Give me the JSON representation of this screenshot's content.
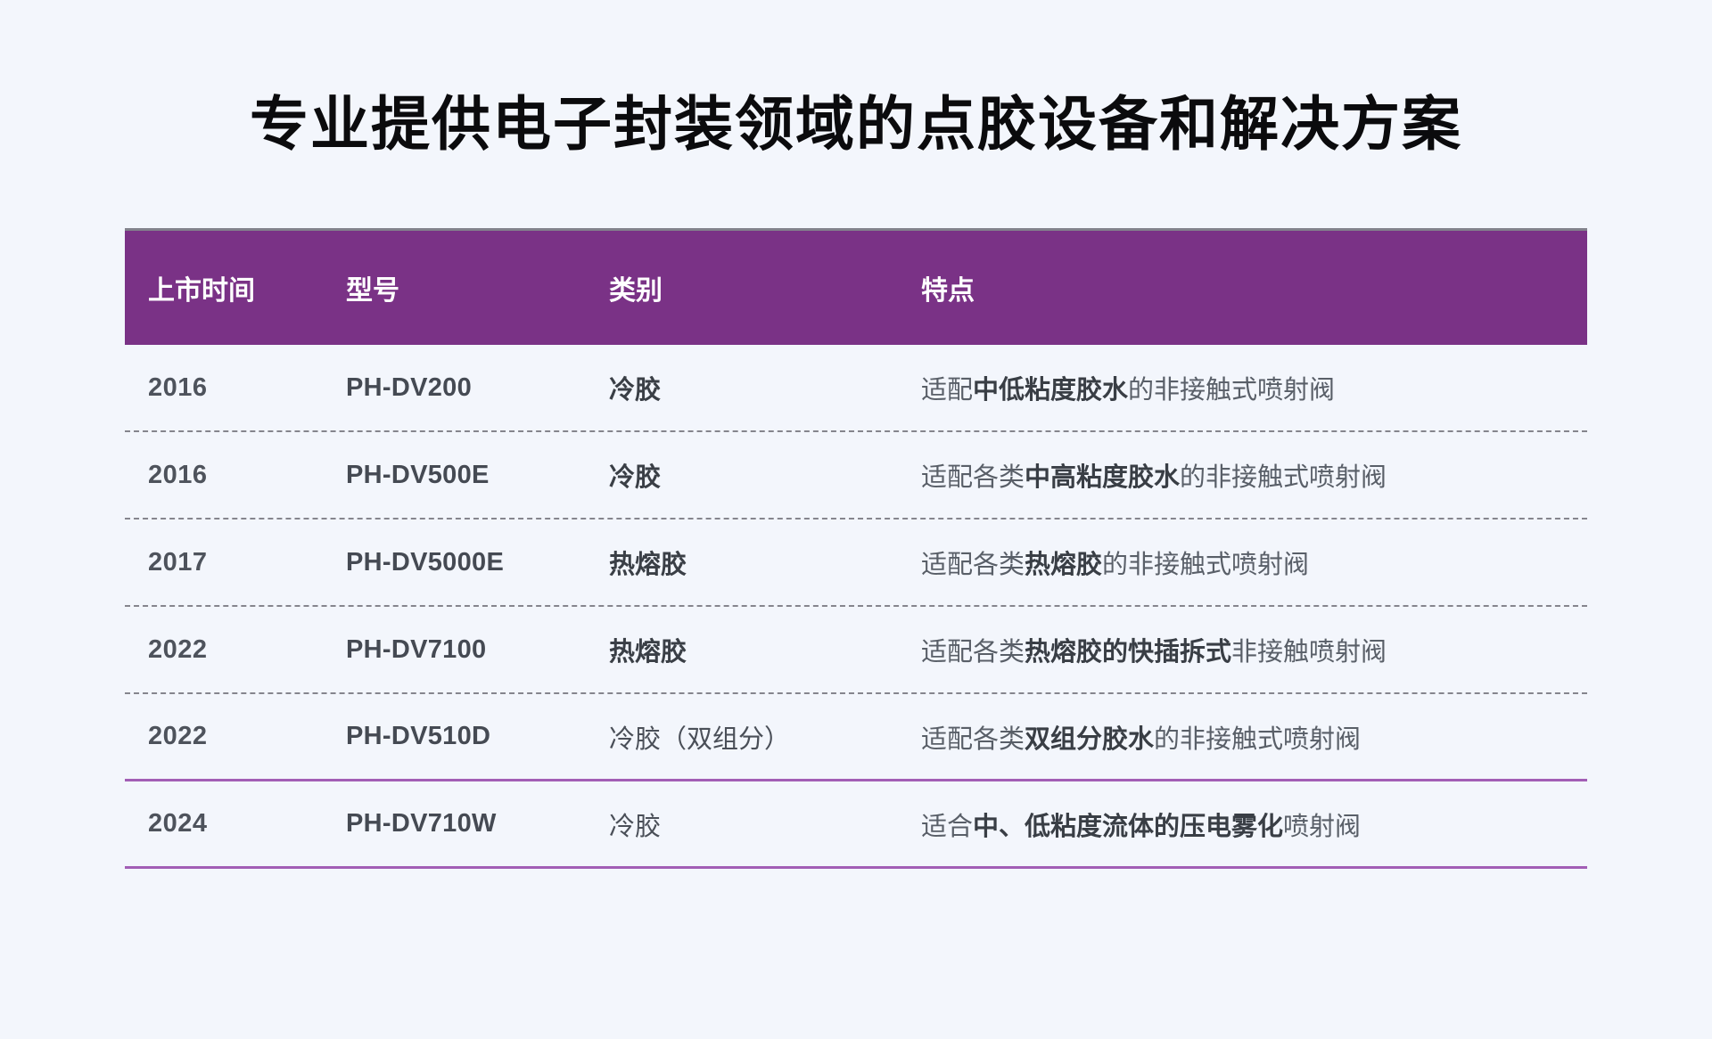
{
  "page": {
    "title": "专业提供电子封装领域的点胶设备和解决方案",
    "background_color": "#F3F6FC",
    "accent_color": "#7A3286",
    "divider_solid_color": "#A25EB5",
    "divider_dashed_color": "#85858D"
  },
  "table": {
    "header": {
      "columns": [
        "上市时间",
        "型号",
        "类别",
        "特点"
      ]
    },
    "rows": [
      {
        "year": "2016",
        "model": "PH-DV200",
        "category": "冷胶",
        "category_bold": true,
        "feature_prefix": "适配",
        "feature_bold": "中低粘度胶水",
        "feature_suffix": "的非接触式喷射阀",
        "divider": "dashed"
      },
      {
        "year": "2016",
        "model": "PH-DV500E",
        "category": "冷胶",
        "category_bold": true,
        "feature_prefix": "适配各类",
        "feature_bold": "中高粘度胶水",
        "feature_suffix": "的非接触式喷射阀",
        "divider": "dashed"
      },
      {
        "year": "2017",
        "model": "PH-DV5000E",
        "category": "热熔胶",
        "category_bold": true,
        "feature_prefix": "适配各类",
        "feature_bold": "热熔胶",
        "feature_suffix": "的非接触式喷射阀",
        "divider": "dashed"
      },
      {
        "year": "2022",
        "model": "PH-DV7100",
        "category": "热熔胶",
        "category_bold": true,
        "feature_prefix": "适配各类",
        "feature_bold": "热熔胶的快插拆式",
        "feature_suffix": "非接触喷射阀",
        "divider": "dashed"
      },
      {
        "year": "2022",
        "model": "PH-DV510D",
        "category": "冷胶（双组分）",
        "category_bold": false,
        "feature_prefix": "适配各类",
        "feature_bold": "双组分胶水",
        "feature_suffix": "的非接触式喷射阀",
        "divider": "solid"
      },
      {
        "year": "2024",
        "model": "PH-DV710W",
        "category": "冷胶",
        "category_bold": false,
        "feature_prefix": "适合",
        "feature_bold": "中、低粘度流体的压电雾化",
        "feature_suffix": "喷射阀",
        "divider": "solid"
      }
    ]
  },
  "chart_data": {
    "type": "table",
    "title": "专业提供电子封装领域的点胶设备和解决方案",
    "columns": [
      "上市时间",
      "型号",
      "类别",
      "特点"
    ],
    "rows": [
      [
        "2016",
        "PH-DV200",
        "冷胶",
        "适配中低粘度胶水的非接触式喷射阀"
      ],
      [
        "2016",
        "PH-DV500E",
        "冷胶",
        "适配各类中高粘度胶水的非接触式喷射阀"
      ],
      [
        "2017",
        "PH-DV5000E",
        "热熔胶",
        "适配各类热熔胶的非接触式喷射阀"
      ],
      [
        "2022",
        "PH-DV7100",
        "热熔胶",
        "适配各类热熔胶的快插拆式非接触喷射阀"
      ],
      [
        "2022",
        "PH-DV510D",
        "冷胶（双组分）",
        "适配各类双组分胶水的非接触式喷射阀"
      ],
      [
        "2024",
        "PH-DV710W",
        "冷胶",
        "适合中、低粘度流体的压电雾化喷射阀"
      ]
    ]
  }
}
